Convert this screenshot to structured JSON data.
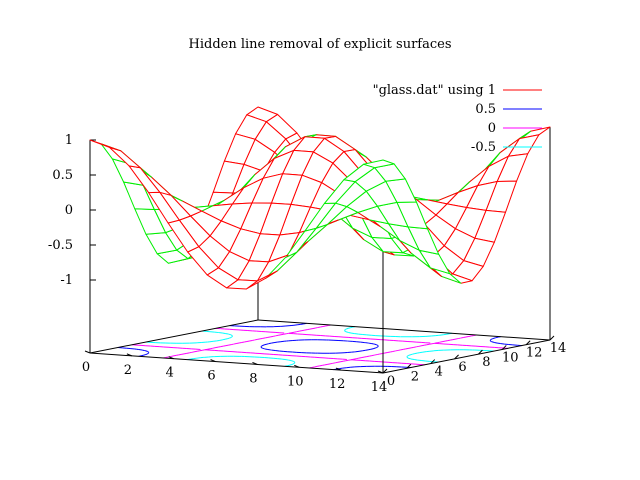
{
  "chart_data": {
    "type": "surface",
    "title": "Hidden line removal of explicit surfaces",
    "projection": "3d-perspective",
    "xlabel": "",
    "ylabel": "",
    "zlabel": "",
    "x_ticks": [
      "0",
      "2",
      "4",
      "6",
      "8",
      "10",
      "12",
      "14"
    ],
    "y_ticks": [
      "0",
      "2",
      "4",
      "6",
      "8",
      "10",
      "12",
      "14"
    ],
    "z_ticks": [
      "1",
      "0.5",
      "0",
      "-0.5",
      "-1"
    ],
    "z_range": [
      -1,
      1
    ],
    "xlim": [
      0,
      14
    ],
    "ylim": [
      0,
      14
    ],
    "grid_size": [
      16,
      16
    ],
    "surface_function": "cos(0.45*x)*cos(0.45*y)",
    "legend": {
      "placement": "top-right",
      "entries": [
        {
          "label": "\"glass.dat\" using 1",
          "color": "#ff0000"
        },
        {
          "label": "0.5",
          "color": "#0000ff"
        },
        {
          "label": "0",
          "color": "#ff00ff"
        },
        {
          "label": "-0.5",
          "color": "#00ffff"
        }
      ]
    },
    "colors": {
      "surface_top": "#00ee00",
      "surface_bottom": "#ff0000",
      "axes": "#000000"
    },
    "contour_levels": [
      0.5,
      0,
      -0.5
    ]
  }
}
